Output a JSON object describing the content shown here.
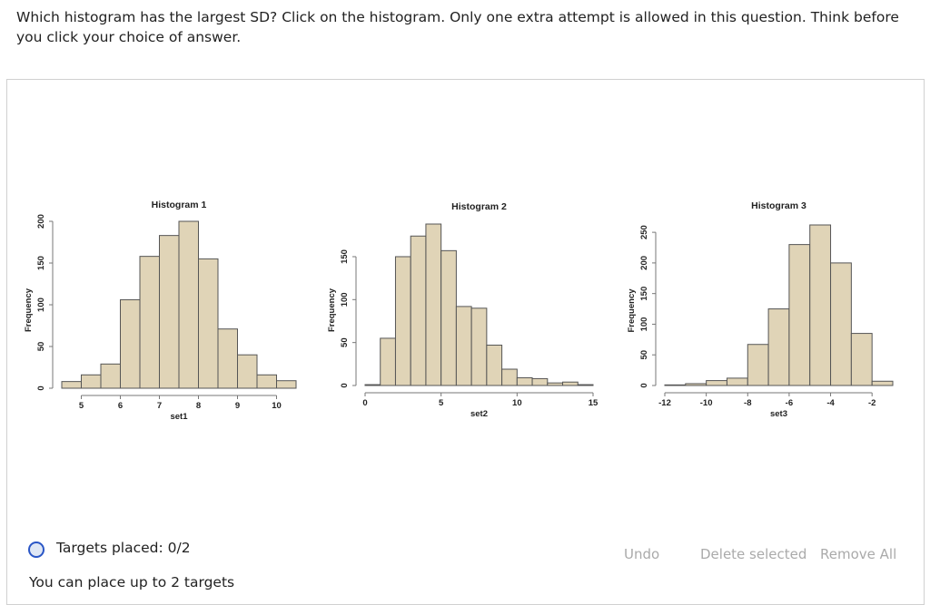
{
  "question": "Which histogram has the largest SD? Click on the histogram. Only one extra attempt is allowed in this question. Think before you click your choice of answer.",
  "status": {
    "targets_placed": "Targets placed: 0/2",
    "limit": "You can place up to 2 targets"
  },
  "buttons": {
    "undo": "Undo",
    "delete": "Delete selected",
    "remove_all": "Remove All"
  },
  "colors": {
    "bar_fill": "#e0d4b7",
    "bar_stroke": "#555555",
    "radio": "#2a56c6"
  },
  "chart_data": [
    {
      "type": "bar",
      "title": "Histogram 1",
      "xlabel": "set1",
      "ylabel": "Frequency",
      "bin_start": 4.5,
      "bin_width": 0.5,
      "values": [
        8,
        16,
        29,
        106,
        158,
        183,
        200,
        155,
        71,
        40,
        16,
        9
      ],
      "xticks": [
        5,
        6,
        7,
        8,
        9,
        10
      ],
      "yticks": [
        0,
        50,
        100,
        150,
        200
      ],
      "xlim": [
        4.5,
        10.5
      ],
      "ylim": [
        0,
        200
      ]
    },
    {
      "type": "bar",
      "title": "Histogram 2",
      "xlabel": "set2",
      "ylabel": "Frequency",
      "bin_start": 0,
      "bin_width": 1,
      "values": [
        1,
        55,
        150,
        174,
        188,
        157,
        92,
        90,
        47,
        19,
        9,
        8,
        3,
        4,
        1
      ],
      "xticks": [
        0,
        5,
        10,
        15
      ],
      "yticks": [
        0,
        50,
        100,
        150
      ],
      "xlim": [
        0,
        15
      ],
      "ylim": [
        0,
        188
      ]
    },
    {
      "type": "bar",
      "title": "Histogram 3",
      "xlabel": "set3",
      "ylabel": "Frequency",
      "bin_start": -12,
      "bin_width": 1,
      "values": [
        1,
        3,
        8,
        12,
        67,
        125,
        230,
        262,
        200,
        85,
        7
      ],
      "xticks": [
        -12,
        -10,
        -8,
        -6,
        -4,
        -2
      ],
      "yticks": [
        0,
        50,
        100,
        150,
        200,
        250
      ],
      "xlim": [
        -12,
        -1
      ],
      "ylim": [
        0,
        262
      ]
    }
  ]
}
